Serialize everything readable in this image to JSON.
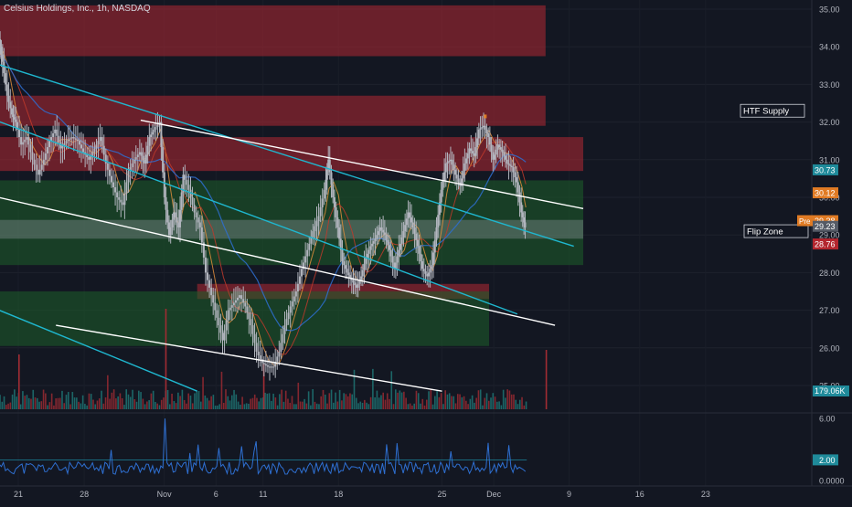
{
  "header": {
    "title": "Celsius Holdings, Inc., 1h, NASDAQ"
  },
  "colors": {
    "background": "#131722",
    "supply_zone": "#b22833",
    "demand_zone": "#1e5e2a",
    "cyan_line": "#1fb7cf",
    "white_line": "#ffffff",
    "candle": "#b2b5be",
    "ma_red": "#c0392b",
    "ma_orange": "#e08e3c",
    "ma_blue": "#2e6fd1",
    "volume_red": "#a12c33",
    "volume_teal": "#1f7a79",
    "price_tag_orange": "#e07b24",
    "price_tag_teal": "#1f8a9a",
    "price_tag_red": "#b3262e"
  },
  "chart_data": {
    "type": "candlestick",
    "symbol": "Celsius Holdings, Inc.",
    "timeframe": "1h",
    "exchange": "NASDAQ",
    "price_axis": {
      "range": [
        25.0,
        35.3
      ],
      "ticks": [
        "35.00",
        "34.00",
        "33.00",
        "32.00",
        "31.00",
        "30.00",
        "29.00",
        "28.00",
        "27.00",
        "26.00",
        "25.00"
      ]
    },
    "time_axis": {
      "labels": [
        "21",
        "28",
        "Nov",
        "6",
        "11",
        "18",
        "25",
        "Dec",
        "9",
        "16",
        "23"
      ]
    },
    "indicator_axis": {
      "ticks": [
        "6.00",
        "2.00",
        "0.0000"
      ]
    },
    "price_tags": [
      {
        "label": "30.73",
        "value": 30.73,
        "color": "#1f8a9a"
      },
      {
        "label": "30.12",
        "value": 30.12,
        "color": "#e07b24"
      },
      {
        "label": "29.38",
        "value": 29.38,
        "color": "#e07b24",
        "prefix": "Pre"
      },
      {
        "label": "29.23",
        "value": 29.23,
        "color": "#555b66"
      },
      {
        "label": "28.76",
        "value": 28.76,
        "color": "#b3262e"
      }
    ],
    "volume_tag": "179.06K",
    "indicator_tag": "2.00",
    "annotations": [
      {
        "text": "HTF Supply",
        "value": 32.3
      },
      {
        "text": "Flip Zone",
        "value": 29.1
      }
    ],
    "zones": [
      {
        "kind": "supply",
        "top": 35.1,
        "bottom": 33.75,
        "start_day": -3,
        "end_day": 56
      },
      {
        "kind": "supply",
        "top": 32.7,
        "bottom": 31.9,
        "start_day": -3,
        "end_day": 56
      },
      {
        "kind": "supply",
        "top": 31.6,
        "bottom": 30.7,
        "start_day": -3,
        "end_day": 60
      },
      {
        "kind": "demand",
        "top": 30.45,
        "bottom": 28.2,
        "start_day": -3,
        "end_day": 60
      },
      {
        "kind": "flip",
        "top": 29.4,
        "bottom": 28.9,
        "start_day": -3,
        "end_day": 60
      },
      {
        "kind": "supply",
        "top": 27.7,
        "bottom": 27.3,
        "start_day": 19,
        "end_day": 50
      },
      {
        "kind": "demand",
        "top": 27.5,
        "bottom": 26.05,
        "start_day": -3,
        "end_day": 50
      }
    ],
    "trendlines": [
      {
        "color": "cyan",
        "from": [
          -3,
          33.6
        ],
        "to": [
          59,
          28.7
        ]
      },
      {
        "color": "cyan",
        "from": [
          -3,
          27.1
        ],
        "to": [
          19,
          24.85
        ]
      },
      {
        "color": "cyan",
        "from": [
          -3,
          32.1
        ],
        "to": [
          53,
          26.9
        ]
      },
      {
        "color": "white",
        "from": [
          13,
          32.05
        ],
        "to": [
          60,
          29.7
        ]
      },
      {
        "color": "white",
        "from": [
          -3,
          30.05
        ],
        "to": [
          57,
          26.6
        ]
      },
      {
        "color": "white",
        "from": [
          4,
          26.6
        ],
        "to": [
          45,
          24.85
        ]
      }
    ],
    "close_series": [
      [
        -2.9,
        33.3
      ],
      [
        -2.4,
        33.8
      ],
      [
        -2.0,
        34.2
      ],
      [
        -1.6,
        33.6
      ],
      [
        -1.1,
        32.7
      ],
      [
        -0.6,
        32.2
      ],
      [
        -0.2,
        32.0
      ],
      [
        0.4,
        31.4
      ],
      [
        1.0,
        31.6
      ],
      [
        1.6,
        31.0
      ],
      [
        2.2,
        30.6
      ],
      [
        2.8,
        31.0
      ],
      [
        3.4,
        31.5
      ],
      [
        4.0,
        31.8
      ],
      [
        4.6,
        31.3
      ],
      [
        5.2,
        31.5
      ],
      [
        5.8,
        31.6
      ],
      [
        6.4,
        31.5
      ],
      [
        7.0,
        31.2
      ],
      [
        7.6,
        31.0
      ],
      [
        8.2,
        31.3
      ],
      [
        8.8,
        31.6
      ],
      [
        9.4,
        30.9
      ],
      [
        10.0,
        30.4
      ],
      [
        10.6,
        30.0
      ],
      [
        11.2,
        29.8
      ],
      [
        11.8,
        30.7
      ],
      [
        12.4,
        31.0
      ],
      [
        13.0,
        31.2
      ],
      [
        13.5,
        30.9
      ],
      [
        14.0,
        31.6
      ],
      [
        14.5,
        31.8
      ],
      [
        15.1,
        32.0
      ],
      [
        15.6,
        30.0
      ],
      [
        16.1,
        29.0
      ],
      [
        16.6,
        29.6
      ],
      [
        17.1,
        29.2
      ],
      [
        17.6,
        30.6
      ],
      [
        18.2,
        30.2
      ],
      [
        18.8,
        29.6
      ],
      [
        19.4,
        29.2
      ],
      [
        20.0,
        28.0
      ],
      [
        20.6,
        27.4
      ],
      [
        21.2,
        26.8
      ],
      [
        21.8,
        26.2
      ],
      [
        22.4,
        27.0
      ],
      [
        23.0,
        27.2
      ],
      [
        23.6,
        27.4
      ],
      [
        24.2,
        27.1
      ],
      [
        24.8,
        26.6
      ],
      [
        25.4,
        25.9
      ],
      [
        26.0,
        25.6
      ],
      [
        26.6,
        25.5
      ],
      [
        27.2,
        25.5
      ],
      [
        27.8,
        25.9
      ],
      [
        28.4,
        26.6
      ],
      [
        29.0,
        27.1
      ],
      [
        29.6,
        27.5
      ],
      [
        30.2,
        28.1
      ],
      [
        30.8,
        28.6
      ],
      [
        31.4,
        29.1
      ],
      [
        32.0,
        29.5
      ],
      [
        32.6,
        30.2
      ],
      [
        33.0,
        31.0
      ],
      [
        33.5,
        30.0
      ],
      [
        34.0,
        29.2
      ],
      [
        34.5,
        28.3
      ],
      [
        35.0,
        28.0
      ],
      [
        35.5,
        27.8
      ],
      [
        36.0,
        27.6
      ],
      [
        36.5,
        27.9
      ],
      [
        37.0,
        28.4
      ],
      [
        37.5,
        28.7
      ],
      [
        38.0,
        28.9
      ],
      [
        38.5,
        29.2
      ],
      [
        39.0,
        29.0
      ],
      [
        39.5,
        28.6
      ],
      [
        40.0,
        28.1
      ],
      [
        40.5,
        28.6
      ],
      [
        41.0,
        29.1
      ],
      [
        41.5,
        29.6
      ],
      [
        42.0,
        29.2
      ],
      [
        42.5,
        28.7
      ],
      [
        43.0,
        28.1
      ],
      [
        43.5,
        27.9
      ],
      [
        44.0,
        28.2
      ],
      [
        44.5,
        29.2
      ],
      [
        45.0,
        30.2
      ],
      [
        45.5,
        30.9
      ],
      [
        46.0,
        31.0
      ],
      [
        46.5,
        30.6
      ],
      [
        47.0,
        30.3
      ],
      [
        47.5,
        30.9
      ],
      [
        48.0,
        31.3
      ],
      [
        48.5,
        31.1
      ],
      [
        49.0,
        31.8
      ],
      [
        49.5,
        31.9
      ],
      [
        50.0,
        31.6
      ],
      [
        50.5,
        31.0
      ],
      [
        51.0,
        31.4
      ],
      [
        51.5,
        31.2
      ],
      [
        52.0,
        30.9
      ],
      [
        52.5,
        30.8
      ],
      [
        53.0,
        30.4
      ],
      [
        53.5,
        29.6
      ],
      [
        53.9,
        29.2
      ]
    ],
    "highlight_candle": {
      "day": 49.6,
      "value": 32.15,
      "color": "#e07b24"
    }
  }
}
